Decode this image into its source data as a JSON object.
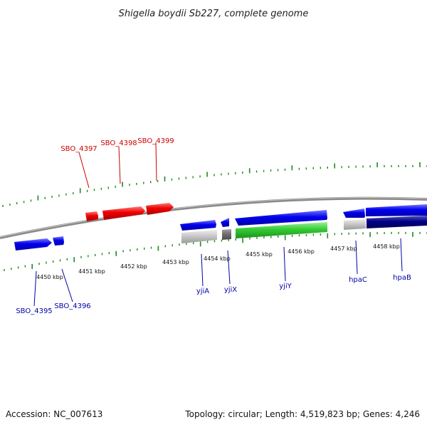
{
  "title": "Shigella boydii Sb227, complete genome",
  "footer": {
    "accession": "Accession: NC_007613",
    "stats": "Topology: circular; Length: 4,519,823 bp; Genes: 4,246"
  },
  "colors": {
    "background": "#ffffff",
    "backbone": "#8a8a8a",
    "tick": "#1f8a1f",
    "upper_gene_label": "#cc0000",
    "lower_gene_label": "#0000aa",
    "forward_gene": "#0000ee",
    "reverse_gene": "#ee0000",
    "category_green": "#33cc33",
    "category_lightgray": "#c8c8c8",
    "category_darkgray": "#707070",
    "category_navy": "#000088"
  },
  "scale_labels": [
    "4450 kbp",
    "4451 kbp",
    "4452 kbp",
    "4453 kbp",
    "4454 kbp",
    "4455 kbp",
    "4456 kbp",
    "4457 kbp",
    "4458 kbp"
  ],
  "upper_gene_labels": [
    "SBO_4397",
    "SBO_4398",
    "SBO_4399"
  ],
  "lower_gene_labels": [
    "SBO_4395",
    "SBO_4396",
    "yjiA",
    "yjiX",
    "yjiY",
    "hpaC",
    "hpaB"
  ]
}
